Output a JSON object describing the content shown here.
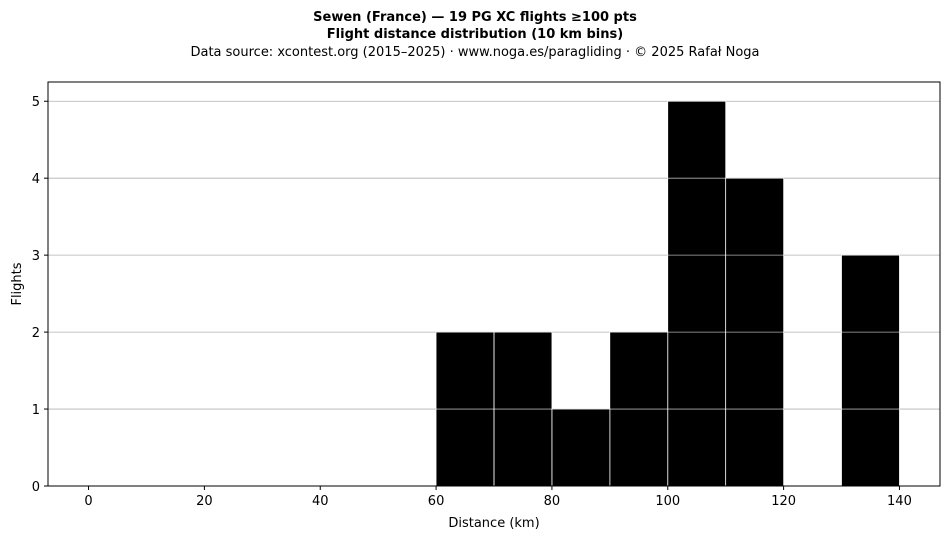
{
  "chart_data": {
    "type": "bar",
    "title": "Sewen (France)  —  19 PG XC flights ≥100 pts",
    "subtitle": "Flight distance distribution (10 km bins)",
    "source": "Data source: xcontest.org (2015–2025)  ·  www.noga.es/paragliding  ·  © 2025 Rafał Noga",
    "xlabel": "Distance (km)",
    "ylabel": "Flights",
    "xlim": [
      -7,
      147
    ],
    "ylim": [
      0,
      5.25
    ],
    "xticks": [
      0,
      20,
      40,
      60,
      80,
      100,
      120,
      140
    ],
    "yticks": [
      0,
      1,
      2,
      3,
      4,
      5
    ],
    "grid": "y",
    "bar_color": "#000000",
    "bins": [
      {
        "start": 60,
        "end": 70,
        "value": 2
      },
      {
        "start": 70,
        "end": 80,
        "value": 2
      },
      {
        "start": 80,
        "end": 90,
        "value": 1
      },
      {
        "start": 90,
        "end": 100,
        "value": 2
      },
      {
        "start": 100,
        "end": 110,
        "value": 5
      },
      {
        "start": 110,
        "end": 120,
        "value": 4
      },
      {
        "start": 130,
        "end": 140,
        "value": 3
      }
    ]
  }
}
